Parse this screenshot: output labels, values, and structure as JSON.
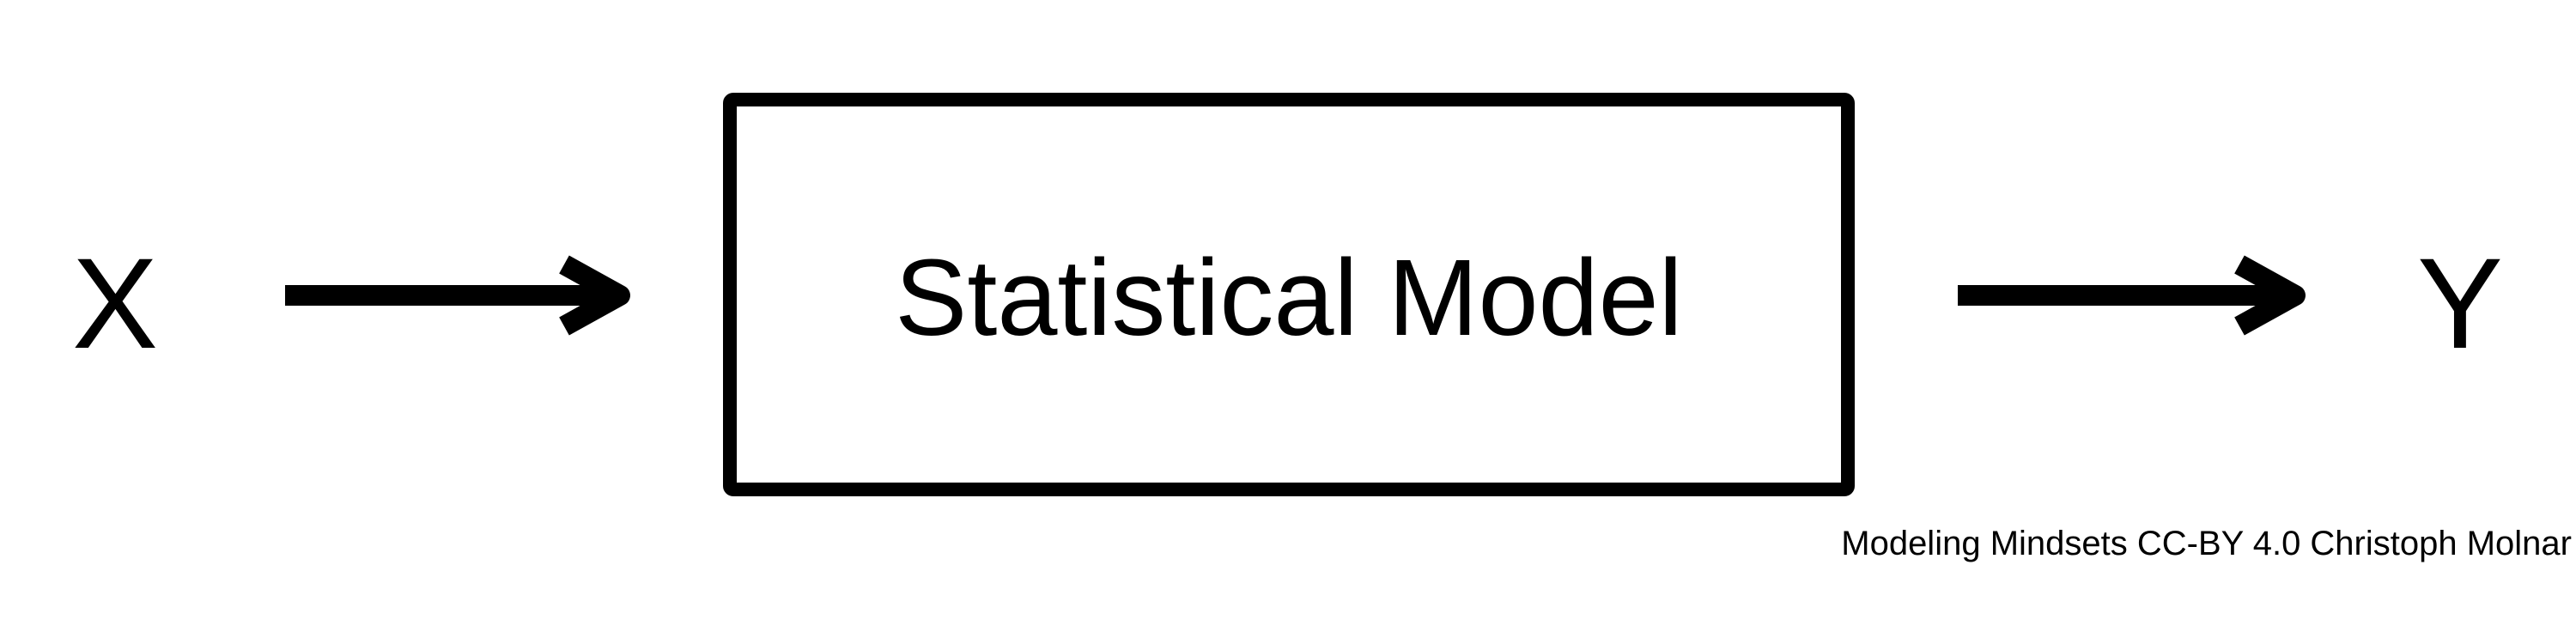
{
  "diagram": {
    "input_label": "X",
    "model_label": "Statistical Model",
    "output_label": "Y",
    "credit": "Modeling Mindsets CC-BY 4.0 Christoph Molnar",
    "colors": {
      "stroke": "#000000",
      "background": "#ffffff"
    }
  }
}
